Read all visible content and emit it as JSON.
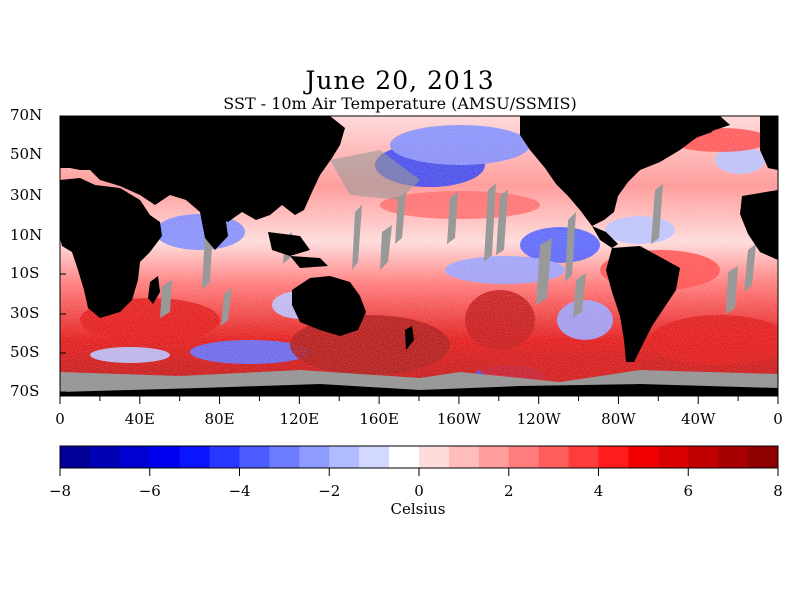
{
  "title": "June 20, 2013",
  "subtitle": "SST - 10m Air Temperature (AMSU/SSMIS)",
  "map": {
    "lat_labels": [
      "70N",
      "50N",
      "30N",
      "10N",
      "10S",
      "30S",
      "50S",
      "70S"
    ],
    "lon_labels": [
      "0",
      "40E",
      "80E",
      "120E",
      "160E",
      "160W",
      "120W",
      "80W",
      "40W",
      "0"
    ],
    "colors": {
      "land": "#000000",
      "no_data": "#999999",
      "warm": "#e8000b",
      "cold": "#0010d8"
    }
  },
  "colorbar": {
    "min": -8,
    "max": 8,
    "labels": [
      "-8",
      "-6",
      "-4",
      "-2",
      "0",
      "2",
      "4",
      "6",
      "8"
    ],
    "units": "Celsius",
    "colors": [
      "#000096",
      "#0000b4",
      "#0000d2",
      "#0000f0",
      "#0a14ff",
      "#2838ff",
      "#4a5cff",
      "#6c7cff",
      "#8e9cff",
      "#b0bcff",
      "#d2d8ff",
      "#ffffff",
      "#ffdcdc",
      "#ffbcbc",
      "#ff9c9c",
      "#ff7c7c",
      "#ff5c5c",
      "#ff3c3c",
      "#ff1c1c",
      "#f00000",
      "#d80000",
      "#c00000",
      "#a80000",
      "#900000"
    ]
  }
}
